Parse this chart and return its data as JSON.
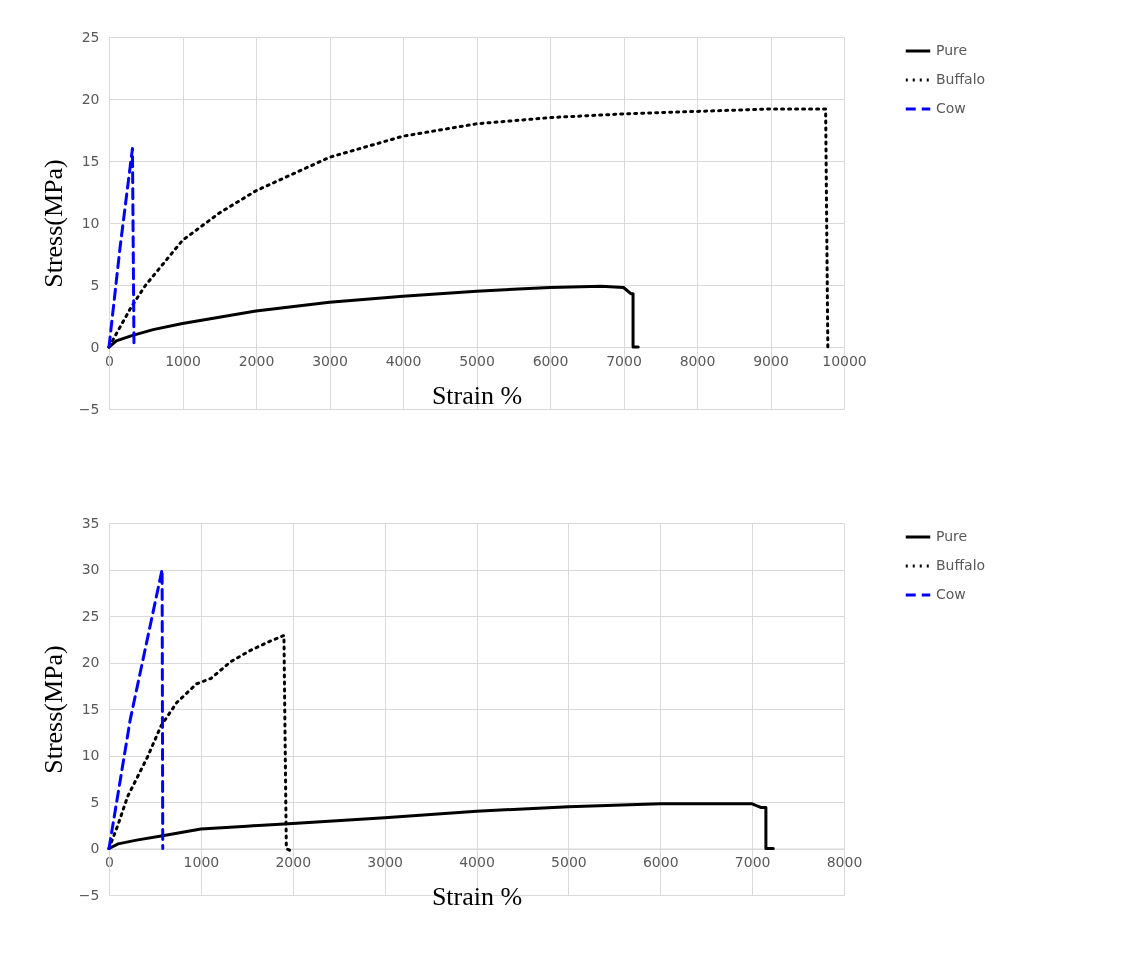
{
  "chart_data": [
    {
      "type": "line",
      "xlabel": "Strain %",
      "ylabel": "Stress(MPa)",
      "xlim": [
        0,
        10000
      ],
      "ylim": [
        -5,
        25
      ],
      "xticks": [
        0,
        1000,
        2000,
        3000,
        4000,
        5000,
        6000,
        7000,
        8000,
        9000,
        10000
      ],
      "yticks": [
        -5,
        0,
        5,
        10,
        15,
        20,
        25
      ],
      "grid": true,
      "legend": "top right",
      "marker": "none",
      "series": [
        {
          "name": "Pure",
          "color": "#000000",
          "line_style": "solid",
          "x": [
            0,
            100,
            300,
            600,
            1000,
            1500,
            2000,
            3000,
            4000,
            5000,
            6000,
            6700,
            7000,
            7100,
            7130,
            7130,
            7200
          ],
          "values": [
            0,
            0.5,
            0.9,
            1.4,
            1.9,
            2.4,
            2.9,
            3.6,
            4.1,
            4.5,
            4.8,
            4.9,
            4.8,
            4.3,
            4.3,
            0,
            0
          ]
        },
        {
          "name": "Buffalo",
          "color": "#000000",
          "line_style": "dotted",
          "x": [
            0,
            300,
            500,
            1000,
            1500,
            2000,
            3000,
            4000,
            5000,
            6000,
            7000,
            8000,
            9000,
            9750,
            9780,
            9800
          ],
          "values": [
            0,
            3.2,
            5,
            8.6,
            10.8,
            12.6,
            15.3,
            17,
            18,
            18.5,
            18.8,
            19,
            19.2,
            19.2,
            0,
            -0.1
          ]
        },
        {
          "name": "Cow",
          "color": "#0000ff",
          "line_style": "dashed",
          "x": [
            0,
            150,
            319,
            340
          ],
          "values": [
            0,
            8,
            16,
            0
          ]
        }
      ]
    },
    {
      "type": "line",
      "xlabel": "Strain %",
      "ylabel": "Stress(MPa)",
      "xlim": [
        0,
        8000
      ],
      "ylim": [
        -5,
        35
      ],
      "xticks": [
        0,
        1000,
        2000,
        3000,
        4000,
        5000,
        6000,
        7000,
        8000
      ],
      "yticks": [
        -5,
        0,
        5,
        10,
        15,
        20,
        25,
        30,
        35
      ],
      "grid": true,
      "legend": "top right",
      "marker": "none",
      "series": [
        {
          "name": "Pure",
          "color": "#000000",
          "line_style": "solid",
          "x": [
            0,
            100,
            300,
            600,
            1000,
            1500,
            2000,
            3000,
            4000,
            5000,
            6000,
            6700,
            7000,
            7100,
            7150,
            7150,
            7230
          ],
          "values": [
            0,
            0.5,
            0.9,
            1.4,
            2.1,
            2.4,
            2.7,
            3.3,
            4,
            4.5,
            4.8,
            4.8,
            4.8,
            4.4,
            4.4,
            0,
            0
          ]
        },
        {
          "name": "Buffalo",
          "color": "#000000",
          "line_style": "dotted",
          "x": [
            0,
            96,
            203,
            417,
            567,
            738,
            952,
            1112,
            1326,
            1540,
            1754,
            1904,
            1930,
            1968
          ],
          "values": [
            0,
            2.5,
            5.6,
            9.8,
            13.2,
            15.7,
            17.7,
            18.3,
            20.1,
            21.3,
            22.3,
            22.9,
            0,
            -0.2
          ]
        },
        {
          "name": "Cow",
          "color": "#0000ff",
          "line_style": "dashed",
          "x": [
            0,
            230,
            578,
            585
          ],
          "values": [
            0,
            13.8,
            30,
            0
          ]
        }
      ]
    }
  ]
}
